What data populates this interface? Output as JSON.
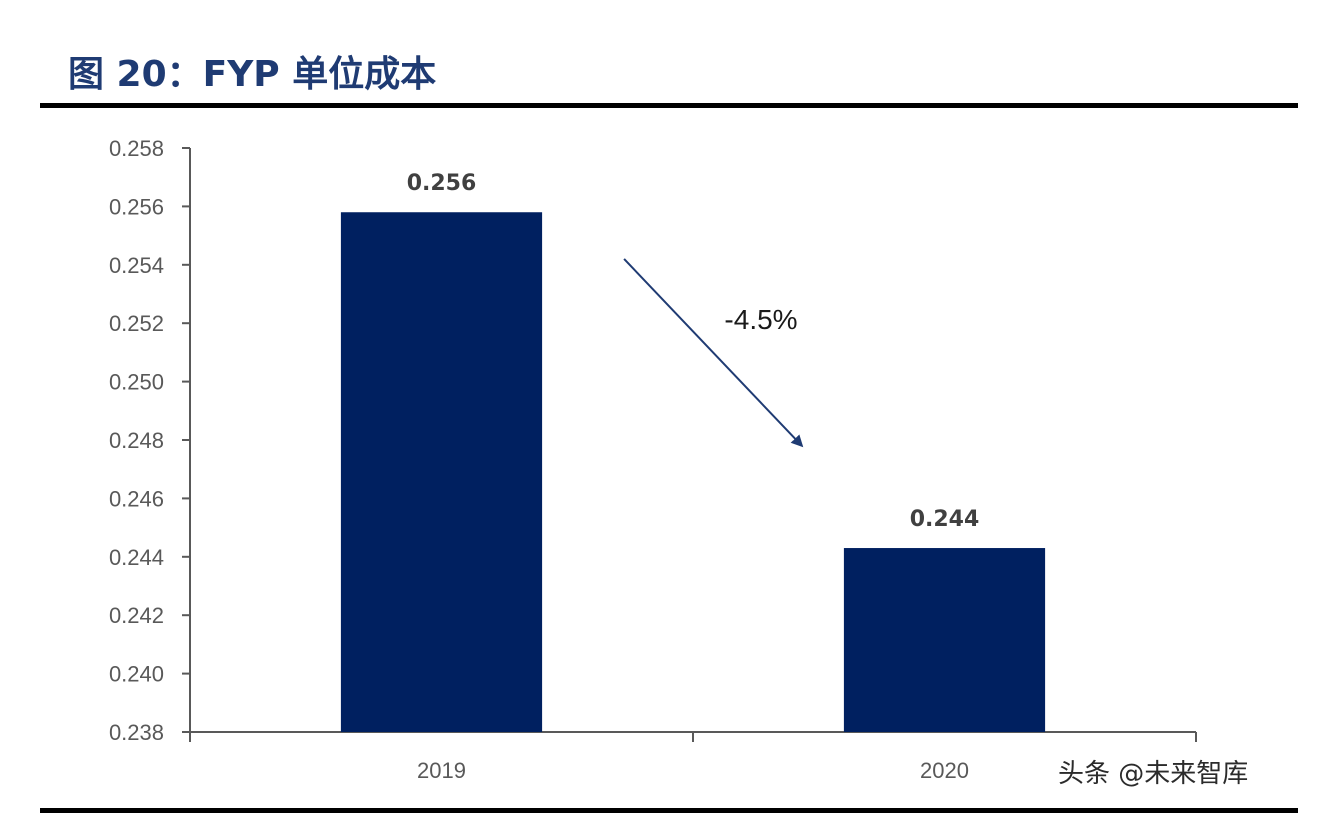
{
  "header": {
    "title": "图 20：FYP 单位成本"
  },
  "watermark": {
    "text": "头条 @未来智库"
  },
  "chart_data": {
    "type": "bar",
    "title": "图 20：FYP 单位成本",
    "xlabel": "",
    "ylabel": "",
    "categories": [
      "2019",
      "2020"
    ],
    "values": [
      0.2558,
      0.2443
    ],
    "data_labels": [
      "0.256",
      "0.244"
    ],
    "ylim": [
      0.238,
      0.258
    ],
    "yticks": [
      "0.238",
      "0.240",
      "0.242",
      "0.244",
      "0.246",
      "0.248",
      "0.250",
      "0.252",
      "0.254",
      "0.256",
      "0.258"
    ],
    "grid": false,
    "legend": "none",
    "bar_color": "#002060",
    "annotation": {
      "text": "-4.5%",
      "arrow": "from 2019 bar toward 2020 bar",
      "arrow_color": "#1f3b73"
    }
  }
}
